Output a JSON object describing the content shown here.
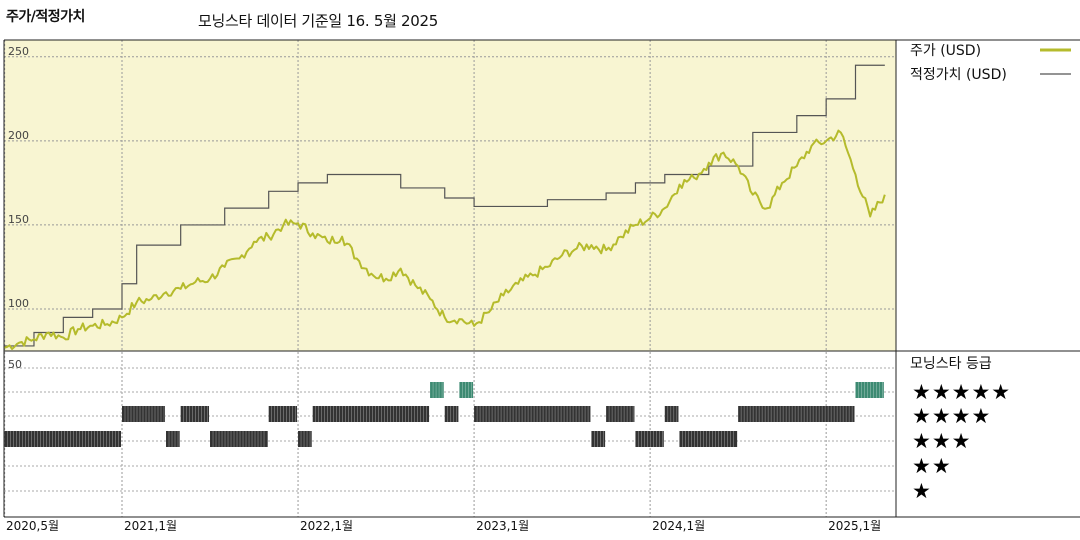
{
  "header": {
    "title": "주가/적정가치",
    "subtitle": "모닝스타 데이터 기준일 16. 5월 2025"
  },
  "colors": {
    "price": "#b5bb2c",
    "fair_value": "#555555",
    "panel_bg": "#f8f5d2",
    "five_star_bar": "#3d8a72",
    "bar": "#333333"
  },
  "legend": {
    "price_label": "주가 (USD)",
    "fair_label": "적정가치 (USD)",
    "rating_title": "모닝스타 등급"
  },
  "stars": [
    "★★★★★",
    "★★★★",
    "★★★",
    "★★",
    "★"
  ],
  "chart_data": [
    {
      "type": "line",
      "title": "주가/적정가치",
      "x_range": [
        "2020-05",
        "2025-05"
      ],
      "ylim": [
        75,
        260
      ],
      "y_ticks": [
        100,
        150,
        200,
        250
      ],
      "y_tick_labels": [
        "100",
        "150",
        "200",
        "250"
      ],
      "x_tick_labels": [
        "2020,5월",
        "2021,1월",
        "2022,1월",
        "2023,1월",
        "2024,1월",
        "2025,1월"
      ],
      "x_tick_dates": [
        "2020-05",
        "2021-01",
        "2022-01",
        "2023-01",
        "2024-01",
        "2025-01"
      ],
      "grid": true,
      "legend_position": "right",
      "series": [
        {
          "name": "주가 (USD)",
          "points": [
            [
              "2020-05",
              77
            ],
            [
              "2020-06",
              80
            ],
            [
              "2020-07",
              82
            ],
            [
              "2020-08",
              86
            ],
            [
              "2020-09",
              83
            ],
            [
              "2020-10",
              88
            ],
            [
              "2020-11",
              90
            ],
            [
              "2020-12",
              91
            ],
            [
              "2021-01",
              95
            ],
            [
              "2021-02",
              104
            ],
            [
              "2021-03",
              106
            ],
            [
              "2021-04",
              110
            ],
            [
              "2021-05",
              112
            ],
            [
              "2021-06",
              116
            ],
            [
              "2021-07",
              118
            ],
            [
              "2021-08",
              125
            ],
            [
              "2021-09",
              130
            ],
            [
              "2021-10",
              140
            ],
            [
              "2021-11",
              143
            ],
            [
              "2021-12",
              150
            ],
            [
              "2022-01",
              151
            ],
            [
              "2022-02",
              145
            ],
            [
              "2022-03",
              140
            ],
            [
              "2022-04",
              143
            ],
            [
              "2022-05",
              130
            ],
            [
              "2022-06",
              121
            ],
            [
              "2022-07",
              118
            ],
            [
              "2022-08",
              124
            ],
            [
              "2022-09",
              114
            ],
            [
              "2022-10",
              106
            ],
            [
              "2022-11",
              95
            ],
            [
              "2022-12",
              94
            ],
            [
              "2023-01",
              90
            ],
            [
              "2023-02",
              98
            ],
            [
              "2023-03",
              108
            ],
            [
              "2023-04",
              115
            ],
            [
              "2023-05",
              120
            ],
            [
              "2023-06",
              125
            ],
            [
              "2023-07",
              132
            ],
            [
              "2023-08",
              136
            ],
            [
              "2023-09",
              138
            ],
            [
              "2023-10",
              135
            ],
            [
              "2023-11",
              143
            ],
            [
              "2023-12",
              150
            ],
            [
              "2024-01",
              154
            ],
            [
              "2024-02",
              160
            ],
            [
              "2024-03",
              174
            ],
            [
              "2024-04",
              178
            ],
            [
              "2024-05",
              187
            ],
            [
              "2024-06",
              193
            ],
            [
              "2024-07",
              185
            ],
            [
              "2024-08",
              168
            ],
            [
              "2024-09",
              160
            ],
            [
              "2024-10",
              175
            ],
            [
              "2024-11",
              185
            ],
            [
              "2024-12",
              197
            ],
            [
              "2025-01",
              200
            ],
            [
              "2025-02",
              205
            ],
            [
              "2025-03",
              180
            ],
            [
              "2025-04",
              155
            ],
            [
              "2025-05",
              168
            ]
          ]
        },
        {
          "name": "적정가치 (USD)",
          "step": true,
          "points": [
            [
              "2020-05",
              78
            ],
            [
              "2020-07",
              86
            ],
            [
              "2020-09",
              95
            ],
            [
              "2020-11",
              100
            ],
            [
              "2021-01",
              115
            ],
            [
              "2021-02",
              138
            ],
            [
              "2021-05",
              150
            ],
            [
              "2021-08",
              160
            ],
            [
              "2021-11",
              170
            ],
            [
              "2022-01",
              175
            ],
            [
              "2022-03",
              180
            ],
            [
              "2022-08",
              172
            ],
            [
              "2022-11",
              166
            ],
            [
              "2023-01",
              161
            ],
            [
              "2023-06",
              165
            ],
            [
              "2023-10",
              169
            ],
            [
              "2023-12",
              175
            ],
            [
              "2024-02",
              180
            ],
            [
              "2024-05",
              185
            ],
            [
              "2024-08",
              205
            ],
            [
              "2024-11",
              215
            ],
            [
              "2025-01",
              225
            ],
            [
              "2025-03",
              245
            ],
            [
              "2025-05",
              245
            ]
          ]
        }
      ]
    },
    {
      "type": "heatmap",
      "title": "모닝스타 등급",
      "y_tick_labels": [
        "50"
      ],
      "row_labels": [
        "★★★★★",
        "★★★★",
        "★★★",
        "★★",
        "★"
      ],
      "rating_periods": [
        {
          "rating": 3,
          "from": "2020-05",
          "to": "2021-01"
        },
        {
          "rating": 4,
          "from": "2021-01",
          "to": "2021-04"
        },
        {
          "rating": 3,
          "from": "2021-04",
          "to": "2021-05"
        },
        {
          "rating": 4,
          "from": "2021-05",
          "to": "2021-07"
        },
        {
          "rating": 3,
          "from": "2021-07",
          "to": "2021-11"
        },
        {
          "rating": 4,
          "from": "2021-11",
          "to": "2022-01"
        },
        {
          "rating": 3,
          "from": "2022-01",
          "to": "2022-02"
        },
        {
          "rating": 4,
          "from": "2022-02",
          "to": "2022-10"
        },
        {
          "rating": 5,
          "from": "2022-10",
          "to": "2022-11"
        },
        {
          "rating": 4,
          "from": "2022-11",
          "to": "2022-12"
        },
        {
          "rating": 5,
          "from": "2022-12",
          "to": "2023-01"
        },
        {
          "rating": 4,
          "from": "2023-01",
          "to": "2023-09"
        },
        {
          "rating": 3,
          "from": "2023-09",
          "to": "2023-10"
        },
        {
          "rating": 4,
          "from": "2023-10",
          "to": "2023-12"
        },
        {
          "rating": 3,
          "from": "2023-12",
          "to": "2024-02"
        },
        {
          "rating": 4,
          "from": "2024-02",
          "to": "2024-03"
        },
        {
          "rating": 3,
          "from": "2024-03",
          "to": "2024-07"
        },
        {
          "rating": 4,
          "from": "2024-07",
          "to": "2025-03"
        },
        {
          "rating": 5,
          "from": "2025-03",
          "to": "2025-05"
        }
      ]
    }
  ]
}
